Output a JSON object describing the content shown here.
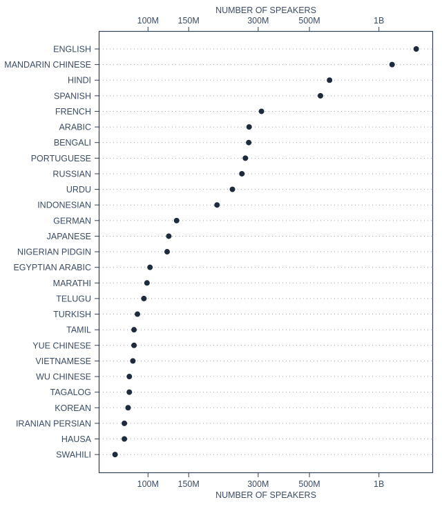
{
  "chart_data": {
    "type": "scatter",
    "xlabel": "NUMBER OF SPEAKERS",
    "xscale": "log",
    "xlim": [
      65000000,
      1650000000
    ],
    "xticks": [
      {
        "value": 100000000,
        "label": "100M"
      },
      {
        "value": 150000000,
        "label": "150M"
      },
      {
        "value": 300000000,
        "label": "300M"
      },
      {
        "value": 500000000,
        "label": "500M"
      },
      {
        "value": 1000000000,
        "label": "1B"
      }
    ],
    "categories": [
      "ENGLISH",
      "MANDARIN CHINESE",
      "HINDI",
      "SPANISH",
      "FRENCH",
      "ARABIC",
      "BENGALI",
      "PORTUGUESE",
      "RUSSIAN",
      "URDU",
      "INDONESIAN",
      "GERMAN",
      "JAPANESE",
      "NIGERIAN PIDGIN",
      "EGYPTIAN ARABIC",
      "MARATHI",
      "TELUGU",
      "TURKISH",
      "TAMIL",
      "YUE CHINESE",
      "VIETNAMESE",
      "WU CHINESE",
      "TAGALOG",
      "KOREAN",
      "IRANIAN PERSIAN",
      "HAUSA",
      "SWAHILI"
    ],
    "values": [
      1450000000,
      1140000000,
      611000000,
      558000000,
      310000000,
      274000000,
      273000000,
      264000000,
      255000000,
      232000000,
      199000000,
      133000000,
      123000000,
      121000000,
      102000000,
      99000000,
      96000000,
      90000000,
      87000000,
      87000000,
      86000000,
      83000000,
      83000000,
      82000000,
      79000000,
      79000000,
      72000000
    ],
    "grid": "dotted horizontal",
    "colors": {
      "dot": "#1e2b3c",
      "axis": "#2f3e52",
      "text": "#3b4c63",
      "grid": "#9aa3ad"
    }
  }
}
